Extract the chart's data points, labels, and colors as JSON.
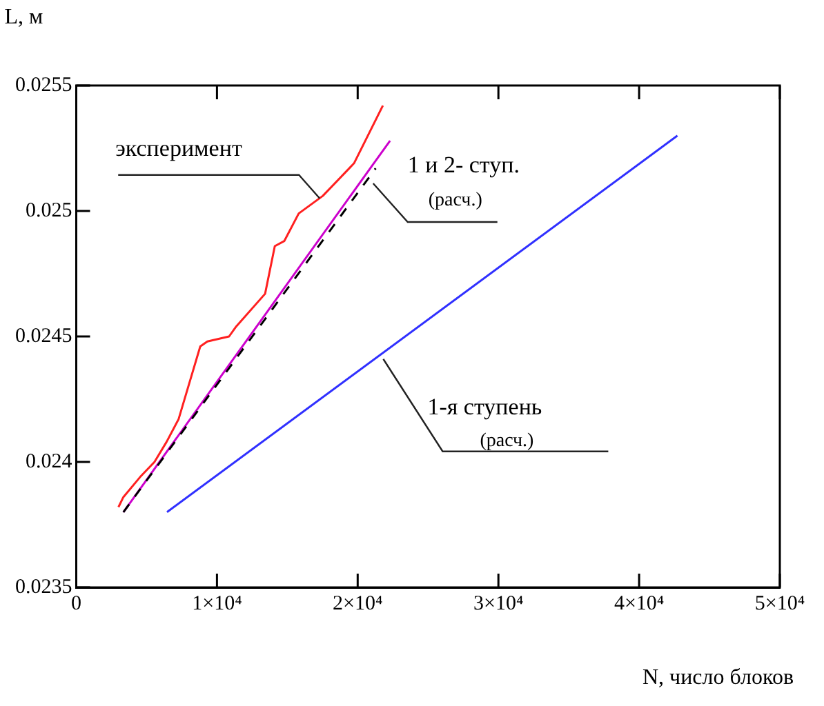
{
  "chart_data": {
    "type": "line",
    "xlabel": "N, число блоков",
    "ylabel": "L, м",
    "xlim": [
      0,
      50000
    ],
    "xticks": [
      0,
      {
        "value": 10000,
        "label": "1×10⁴"
      },
      {
        "value": 20000,
        "label": "2×10⁴"
      },
      {
        "value": 30000,
        "label": "3×10⁴"
      },
      {
        "value": 40000,
        "label": "4×10⁴"
      },
      {
        "value": 50000,
        "label": "5×10⁴"
      }
    ],
    "ylim": [
      0.0235,
      0.0255
    ],
    "yticks": [
      0.0235,
      0.024,
      0.0245,
      0.025,
      0.0255
    ],
    "grid": false,
    "legend": false,
    "marker": "none",
    "series": [
      {
        "color": "#ff2020",
        "x": [
          3000,
          3350,
          4540,
          5560,
          6420,
          7270,
          8810,
          9320,
          10860,
          11370,
          13420,
          14110,
          14780,
          15810,
          17520,
          19060,
          19740,
          21790
        ],
        "values": [
          0.02382,
          0.02386,
          0.02394,
          0.024,
          0.02408,
          0.02417,
          0.02446,
          0.02448,
          0.0245,
          0.02454,
          0.02467,
          0.02486,
          0.02488,
          0.02499,
          0.02506,
          0.02515,
          0.02519,
          0.02542
        ]
      },
      {
        "color": "#000000",
        "line_style": "dashed",
        "x": [
          3350,
          21280
        ],
        "values": [
          0.0238,
          0.02517
        ]
      },
      {
        "color": "#cc00cc",
        "x": [
          3350,
          22300
        ],
        "values": [
          0.0238,
          0.02528
        ]
      },
      {
        "color": "#3030ff",
        "x": [
          6450,
          42720
        ],
        "values": [
          0.0238,
          0.0253
        ]
      }
    ],
    "annotations": [
      {
        "text": "эксперимент",
        "x": 17300,
        "y": 0.02505
      },
      {
        "text": "1 и 2- ступ.\n(расч.)",
        "x": 21100,
        "y": 0.02511
      },
      {
        "text": "1-я ступень\n(расч.)",
        "x": 21820,
        "y": 0.02441
      }
    ]
  }
}
